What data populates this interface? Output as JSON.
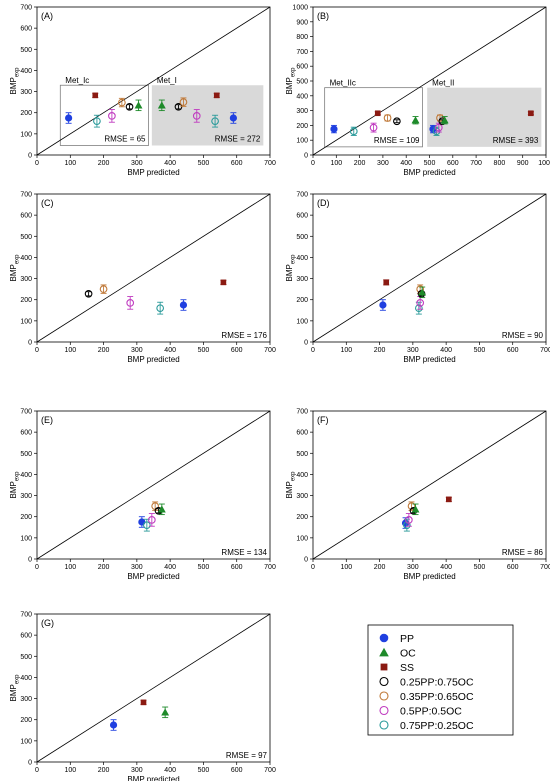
{
  "figure": {
    "width": 550,
    "height": 781
  },
  "colors": {
    "PP": "#1f3fe0",
    "OC": "#1e8a2a",
    "SS": "#8b1a12",
    "0.25PP:0.75OC": "#000000",
    "0.35PP:0.65OC": "#c07a3a",
    "0.5PP:0.5OC": "#c03cc0",
    "0.75PP:0.25OC": "#2a9a9a",
    "shade": "#d9d9d9"
  },
  "legend": {
    "items": [
      {
        "name": "PP",
        "marker": "circle-filled"
      },
      {
        "name": "OC",
        "marker": "triangle-filled"
      },
      {
        "name": "SS",
        "marker": "square-filled"
      },
      {
        "name": "0.25PP:0.75OC",
        "marker": "circle-open"
      },
      {
        "name": "0.35PP:0.65OC",
        "marker": "circle-open"
      },
      {
        "name": "0.5PP:0.5OC",
        "marker": "circle-open"
      },
      {
        "name": "0.75PP:0.25OC",
        "marker": "circle-open"
      }
    ]
  },
  "chart_data": [
    {
      "id": "A",
      "type": "scatter",
      "panel_label": "(A)",
      "xlabel": "BMP predicted",
      "ylabel": "BMP",
      "ylabel_sub": "exp",
      "xlim": [
        0,
        700
      ],
      "ylim": [
        0,
        700
      ],
      "xticks": [
        0,
        100,
        200,
        300,
        400,
        500,
        600,
        700
      ],
      "yticks": [
        0,
        100,
        200,
        300,
        400,
        500,
        600,
        700
      ],
      "diagonal": true,
      "boxes": [
        {
          "label": "Met_Ic",
          "rmse": "RMSE = 65",
          "x0": 70,
          "x1": 335,
          "y0": 45,
          "y1": 330,
          "shaded": false
        },
        {
          "label": "Met_I",
          "rmse": "RMSE = 272",
          "x0": 345,
          "x1": 680,
          "y0": 45,
          "y1": 330,
          "shaded": true
        }
      ],
      "points": [
        {
          "series": "PP",
          "x": 95,
          "y": 175,
          "err": 25
        },
        {
          "series": "SS",
          "x": 175,
          "y": 282,
          "err": 10
        },
        {
          "series": "0.75PP:0.25OC",
          "x": 180,
          "y": 160,
          "err": 28
        },
        {
          "series": "0.5PP:0.5OC",
          "x": 225,
          "y": 185,
          "err": 30
        },
        {
          "series": "0.35PP:0.65OC",
          "x": 255,
          "y": 248,
          "err": 20
        },
        {
          "series": "0.25PP:0.75OC",
          "x": 278,
          "y": 228,
          "err": 10
        },
        {
          "series": "OC",
          "x": 305,
          "y": 235,
          "err": 25
        },
        {
          "series": "OC",
          "x": 375,
          "y": 235,
          "err": 25
        },
        {
          "series": "0.25PP:0.75OC",
          "x": 425,
          "y": 228,
          "err": 10
        },
        {
          "series": "0.35PP:0.65OC",
          "x": 440,
          "y": 250,
          "err": 20
        },
        {
          "series": "0.5PP:0.5OC",
          "x": 480,
          "y": 185,
          "err": 30
        },
        {
          "series": "SS",
          "x": 540,
          "y": 282,
          "err": 10
        },
        {
          "series": "0.75PP:0.25OC",
          "x": 535,
          "y": 160,
          "err": 28
        },
        {
          "series": "PP",
          "x": 590,
          "y": 175,
          "err": 25
        }
      ]
    },
    {
      "id": "B",
      "type": "scatter",
      "panel_label": "(B)",
      "xlabel": "BMP predicted",
      "ylabel": "BMP",
      "ylabel_sub": "exp",
      "xlim": [
        0,
        1000
      ],
      "ylim": [
        0,
        1000
      ],
      "xticks": [
        0,
        100,
        200,
        300,
        400,
        500,
        600,
        700,
        800,
        900,
        1000
      ],
      "yticks": [
        0,
        100,
        200,
        300,
        400,
        500,
        600,
        700,
        800,
        900,
        1000
      ],
      "diagonal": true,
      "boxes": [
        {
          "label": "Met_IIc",
          "rmse": "RMSE = 109",
          "x0": 50,
          "x1": 470,
          "y0": 55,
          "y1": 455,
          "shaded": false
        },
        {
          "label": "Met_II",
          "rmse": "RMSE = 393",
          "x0": 490,
          "x1": 980,
          "y0": 55,
          "y1": 455,
          "shaded": true
        }
      ],
      "points": [
        {
          "series": "PP",
          "x": 90,
          "y": 175,
          "err": 25
        },
        {
          "series": "0.75PP:0.25OC",
          "x": 175,
          "y": 160,
          "err": 28
        },
        {
          "series": "0.5PP:0.5OC",
          "x": 260,
          "y": 185,
          "err": 30
        },
        {
          "series": "SS",
          "x": 278,
          "y": 282,
          "err": 10
        },
        {
          "series": "0.35PP:0.65OC",
          "x": 320,
          "y": 250,
          "err": 20
        },
        {
          "series": "0.25PP:0.75OC",
          "x": 360,
          "y": 228,
          "err": 10
        },
        {
          "series": "OC",
          "x": 440,
          "y": 235,
          "err": 25
        },
        {
          "series": "PP",
          "x": 515,
          "y": 175,
          "err": 25
        },
        {
          "series": "0.75PP:0.25OC",
          "x": 530,
          "y": 160,
          "err": 28
        },
        {
          "series": "0.5PP:0.5OC",
          "x": 540,
          "y": 185,
          "err": 30
        },
        {
          "series": "0.35PP:0.65OC",
          "x": 545,
          "y": 250,
          "err": 20
        },
        {
          "series": "0.25PP:0.75OC",
          "x": 555,
          "y": 228,
          "err": 10
        },
        {
          "series": "OC",
          "x": 565,
          "y": 235,
          "err": 25
        },
        {
          "series": "SS",
          "x": 935,
          "y": 282,
          "err": 10
        }
      ]
    },
    {
      "id": "C",
      "type": "scatter",
      "panel_label": "(C)",
      "xlabel": "BMP predicted",
      "ylabel": "BMP",
      "ylabel_sub": "exp",
      "xlim": [
        0,
        700
      ],
      "ylim": [
        0,
        700
      ],
      "xticks": [
        0,
        100,
        200,
        300,
        400,
        500,
        600,
        700
      ],
      "yticks": [
        0,
        100,
        200,
        300,
        400,
        500,
        600,
        700
      ],
      "diagonal": true,
      "rmse": "RMSE = 176",
      "points": [
        {
          "series": "0.25PP:0.75OC",
          "x": 155,
          "y": 228,
          "err": 10
        },
        {
          "series": "0.35PP:0.65OC",
          "x": 200,
          "y": 250,
          "err": 20
        },
        {
          "series": "0.5PP:0.5OC",
          "x": 280,
          "y": 185,
          "err": 30
        },
        {
          "series": "0.75PP:0.25OC",
          "x": 370,
          "y": 160,
          "err": 28
        },
        {
          "series": "PP",
          "x": 440,
          "y": 175,
          "err": 25
        },
        {
          "series": "SS",
          "x": 560,
          "y": 282,
          "err": 10
        }
      ]
    },
    {
      "id": "D",
      "type": "scatter",
      "panel_label": "(D)",
      "xlabel": "BMP predicted",
      "ylabel": "BMP",
      "ylabel_sub": "exp",
      "xlim": [
        0,
        700
      ],
      "ylim": [
        0,
        700
      ],
      "xticks": [
        0,
        100,
        200,
        300,
        400,
        500,
        600,
        700
      ],
      "yticks": [
        0,
        100,
        200,
        300,
        400,
        500,
        600,
        700
      ],
      "diagonal": true,
      "rmse": "RMSE = 90",
      "points": [
        {
          "series": "PP",
          "x": 210,
          "y": 175,
          "err": 25
        },
        {
          "series": "SS",
          "x": 220,
          "y": 282,
          "err": 12
        },
        {
          "series": "0.75PP:0.25OC",
          "x": 318,
          "y": 160,
          "err": 28
        },
        {
          "series": "0.5PP:0.5OC",
          "x": 322,
          "y": 185,
          "err": 30
        },
        {
          "series": "0.35PP:0.65OC",
          "x": 322,
          "y": 250,
          "err": 20
        },
        {
          "series": "0.25PP:0.75OC",
          "x": 326,
          "y": 228,
          "err": 10
        },
        {
          "series": "OC",
          "x": 328,
          "y": 235,
          "err": 25
        }
      ]
    },
    {
      "id": "E",
      "type": "scatter",
      "panel_label": "(E)",
      "xlabel": "BMP predicted",
      "ylabel": "BMP",
      "ylabel_sub": "exp",
      "xlim": [
        0,
        700
      ],
      "ylim": [
        0,
        700
      ],
      "xticks": [
        0,
        100,
        200,
        300,
        400,
        500,
        600,
        700
      ],
      "yticks": [
        0,
        100,
        200,
        300,
        400,
        500,
        600,
        700
      ],
      "diagonal": true,
      "rmse": "RMSE = 134",
      "points": [
        {
          "series": "PP",
          "x": 315,
          "y": 175,
          "err": 25
        },
        {
          "series": "0.75PP:0.25OC",
          "x": 330,
          "y": 160,
          "err": 28
        },
        {
          "series": "0.5PP:0.5OC",
          "x": 345,
          "y": 185,
          "err": 30
        },
        {
          "series": "0.35PP:0.65OC",
          "x": 355,
          "y": 250,
          "err": 20
        },
        {
          "series": "0.25PP:0.75OC",
          "x": 365,
          "y": 228,
          "err": 10
        },
        {
          "series": "OC",
          "x": 375,
          "y": 235,
          "err": 25
        }
      ]
    },
    {
      "id": "F",
      "type": "scatter",
      "panel_label": "(F)",
      "xlabel": "BMP predicted",
      "ylabel": "BMP",
      "ylabel_sub": "exp",
      "xlim": [
        0,
        700
      ],
      "ylim": [
        0,
        700
      ],
      "xticks": [
        0,
        100,
        200,
        300,
        400,
        500,
        600,
        700
      ],
      "yticks": [
        0,
        100,
        200,
        300,
        400,
        500,
        600,
        700
      ],
      "diagonal": true,
      "rmse": "RMSE = 86",
      "points": [
        {
          "series": "PP",
          "x": 278,
          "y": 170,
          "err": 25
        },
        {
          "series": "0.75PP:0.25OC",
          "x": 282,
          "y": 160,
          "err": 28
        },
        {
          "series": "0.5PP:0.5OC",
          "x": 288,
          "y": 185,
          "err": 30
        },
        {
          "series": "0.35PP:0.65OC",
          "x": 296,
          "y": 250,
          "err": 20
        },
        {
          "series": "0.25PP:0.75OC",
          "x": 302,
          "y": 228,
          "err": 10
        },
        {
          "series": "OC",
          "x": 308,
          "y": 235,
          "err": 25
        },
        {
          "series": "SS",
          "x": 408,
          "y": 282,
          "err": 10
        }
      ]
    },
    {
      "id": "G",
      "type": "scatter",
      "panel_label": "(G)",
      "xlabel": "BMP predicted",
      "ylabel": "BMP",
      "ylabel_sub": "exp",
      "xlim": [
        0,
        700
      ],
      "ylim": [
        0,
        700
      ],
      "xticks": [
        0,
        100,
        200,
        300,
        400,
        500,
        600,
        700
      ],
      "yticks": [
        0,
        100,
        200,
        300,
        400,
        500,
        600,
        700
      ],
      "diagonal": true,
      "rmse": "RMSE = 97",
      "points": [
        {
          "series": "PP",
          "x": 230,
          "y": 175,
          "err": 25
        },
        {
          "series": "SS",
          "x": 320,
          "y": 282,
          "err": 10
        },
        {
          "series": "OC",
          "x": 385,
          "y": 235,
          "err": 25
        }
      ]
    }
  ]
}
